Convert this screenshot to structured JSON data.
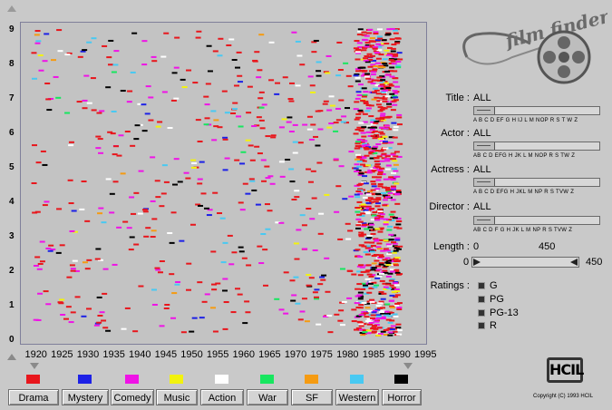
{
  "chart_data": {
    "type": "scatter",
    "x_ticks": [
      "1920",
      "1925",
      "1930",
      "1935",
      "1940",
      "1945",
      "1950",
      "1955",
      "1960",
      "1965",
      "1970",
      "1975",
      "1980",
      "1985",
      "1990",
      "1995"
    ],
    "y_ticks": [
      "0",
      "1",
      "2",
      "3",
      "4",
      "5",
      "6",
      "7",
      "8",
      "9"
    ],
    "xlim": [
      1918,
      1995
    ],
    "ylim": [
      0,
      9.2
    ],
    "grid": false,
    "series": [
      {
        "name": "Drama",
        "color": "#e8161c"
      },
      {
        "name": "Mystery",
        "color": "#1d21e6"
      },
      {
        "name": "Comedy",
        "color": "#ef13e6"
      },
      {
        "name": "Music",
        "color": "#f2f20e"
      },
      {
        "name": "Action",
        "color": "#ffffff"
      },
      {
        "name": "War",
        "color": "#17e65f"
      },
      {
        "name": "SF",
        "color": "#f59b12"
      },
      {
        "name": "Western",
        "color": "#48c9f2"
      },
      {
        "name": "Horror",
        "color": "#000000"
      }
    ]
  },
  "logo": {
    "text": "film finder"
  },
  "filters": {
    "title": {
      "label": "Title :",
      "value": "ALL",
      "alphabet": "A  B   C   D   EF G H   IJ L  M     NOP  R  S      T    W  Z"
    },
    "actor": {
      "label": "Actor :",
      "value": "ALL",
      "alphabet": "AB   C   D  EFG H  JK L M     NOP R S   TW Z"
    },
    "actress": {
      "label": "Actress :",
      "value": "ALL",
      "alphabet": "A  B   C   D  EFG H  JKL  M    NP  R  S   TVW Z"
    },
    "director": {
      "label": "Director :",
      "value": "ALL",
      "alphabet": "AB  C  D F G H   JK L  M   NP  R  S    TVW Z"
    }
  },
  "length": {
    "label": "Length :",
    "min_label": "0",
    "max_label": "450",
    "low": "0",
    "high": "450"
  },
  "ratings": {
    "label": "Ratings :",
    "items": [
      "G",
      "PG",
      "PG-13",
      "R"
    ]
  },
  "genres": [
    {
      "label": "Drama",
      "color": "#e8161c"
    },
    {
      "label": "Mystery",
      "color": "#1d21e6"
    },
    {
      "label": "Comedy",
      "color": "#ef13e6"
    },
    {
      "label": "Music",
      "color": "#f2f20e"
    },
    {
      "label": "Action",
      "color": "#ffffff"
    },
    {
      "label": "War",
      "color": "#17e65f"
    },
    {
      "label": "SF",
      "color": "#f59b12"
    },
    {
      "label": "Western",
      "color": "#48c9f2"
    },
    {
      "label": "Horror",
      "color": "#000000"
    }
  ],
  "hcil_logo": "HCIL",
  "copyright": "Copyright (C) 1993 HCIL"
}
